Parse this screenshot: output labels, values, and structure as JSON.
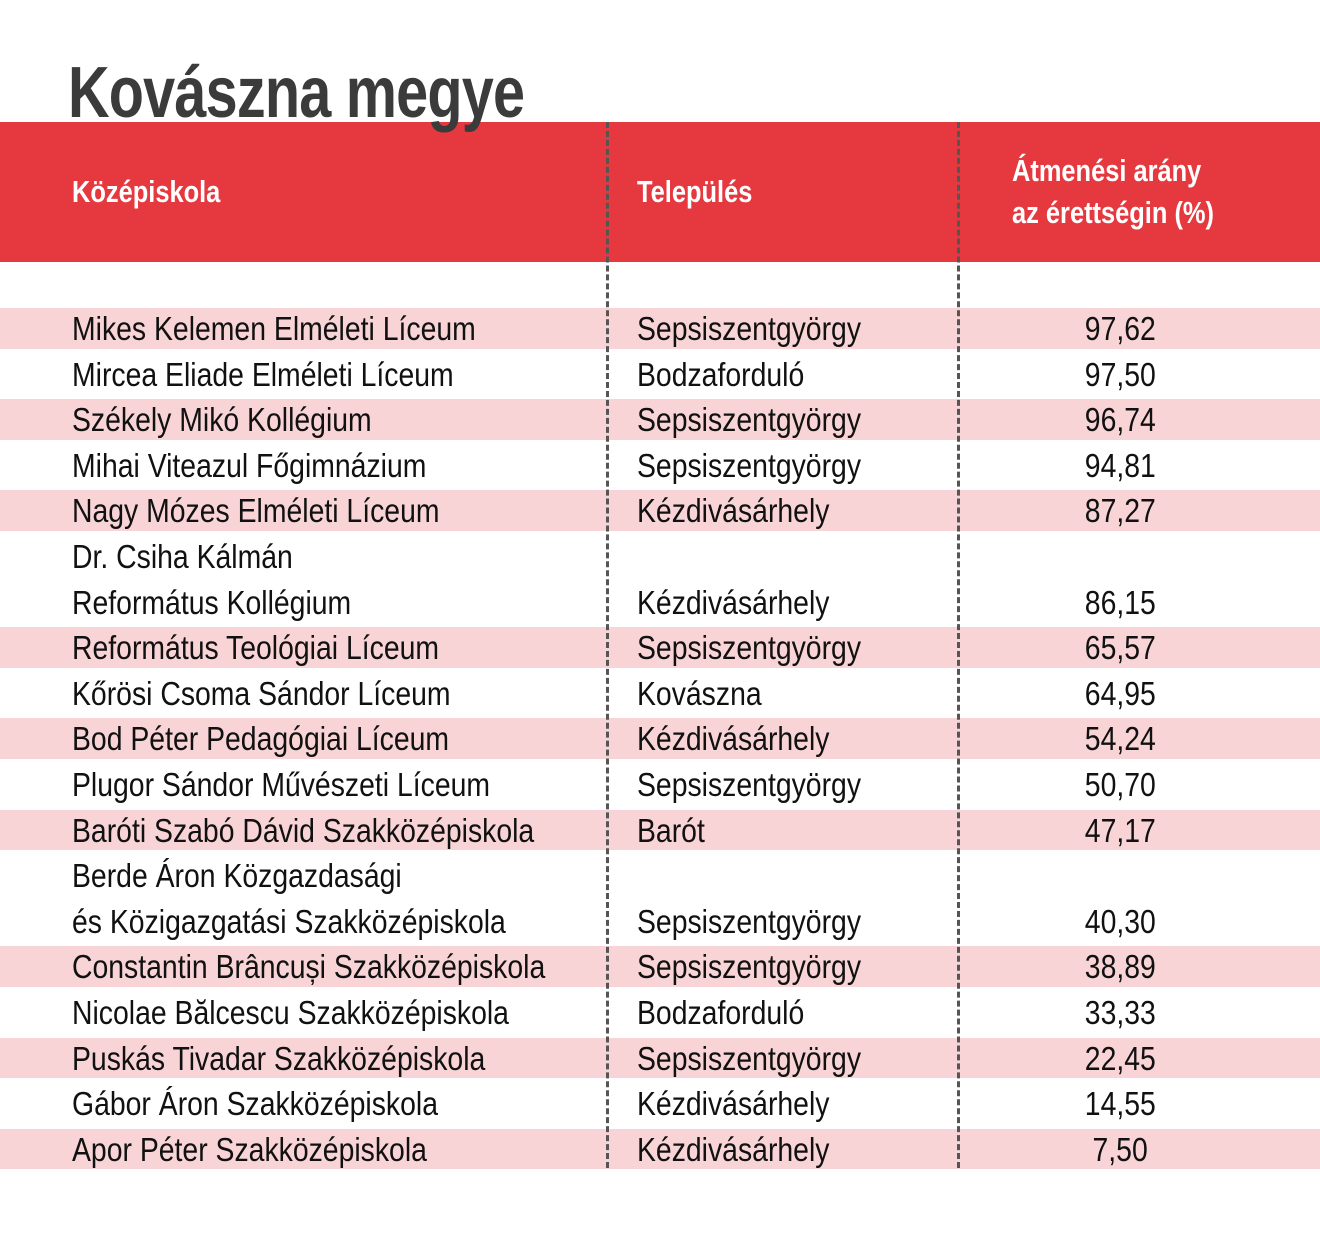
{
  "title": "Kovászna megye",
  "colors": {
    "header": "#e5393f",
    "stripe": "#f9d4d6",
    "title": "#3b3b3b"
  },
  "table": {
    "headers": {
      "school": "Középiskola",
      "town": "Település",
      "rate_line1": "Átmenési arány",
      "rate_line2": "az érettségin (%)"
    },
    "rows": [
      {
        "school": "Mikes Kelemen Elméleti Líceum",
        "town": "Sepsiszentgyörgy",
        "rate": "97,62"
      },
      {
        "school": "Mircea Eliade Elméleti Líceum",
        "town": "Bodzaforduló",
        "rate": "97,50"
      },
      {
        "school": "Székely Mikó Kollégium",
        "town": "Sepsiszentgyörgy",
        "rate": "96,74"
      },
      {
        "school": "Mihai Viteazul Főgimnázium",
        "town": "Sepsiszentgyörgy",
        "rate": "94,81"
      },
      {
        "school": "Nagy Mózes Elméleti Líceum",
        "town": "Kézdivásárhely",
        "rate": "87,27"
      },
      {
        "school_line1": "Dr. Csiha Kálmán",
        "school_line2": "Református Kollégium",
        "town": "Kézdivásárhely",
        "rate": "86,15"
      },
      {
        "school": "Református Teológiai Líceum",
        "town": "Sepsiszentgyörgy",
        "rate": "65,57"
      },
      {
        "school": "Kőrösi Csoma Sándor Líceum",
        "town": "Kovászna",
        "rate": "64,95"
      },
      {
        "school": "Bod Péter Pedagógiai Líceum",
        "town": "Kézdivásárhely",
        "rate": "54,24"
      },
      {
        "school": "Plugor Sándor Művészeti Líceum",
        "town": "Sepsiszentgyörgy",
        "rate": "50,70"
      },
      {
        "school": "Baróti Szabó Dávid Szakközépiskola",
        "town": "Barót",
        "rate": "47,17"
      },
      {
        "school_line1": "Berde Áron Közgazdasági",
        "school_line2": "és Közigazgatási Szakközépiskola",
        "town": "Sepsiszentgyörgy",
        "rate": "40,30"
      },
      {
        "school": "Constantin Brâncuși Szakközépiskola",
        "town": "Sepsiszentgyörgy",
        "rate": "38,89"
      },
      {
        "school": "Nicolae Bălcescu Szakközépiskola",
        "town": "Bodzaforduló",
        "rate": "33,33"
      },
      {
        "school": "Puskás Tivadar Szakközépiskola",
        "town": "Sepsiszentgyörgy",
        "rate": "22,45"
      },
      {
        "school": "Gábor Áron Szakközépiskola",
        "town": "Kézdivásárhely",
        "rate": "14,55"
      },
      {
        "school": "Apor Péter Szakközépiskola",
        "town": "Kézdivásárhely",
        "rate": "7,50"
      }
    ]
  }
}
